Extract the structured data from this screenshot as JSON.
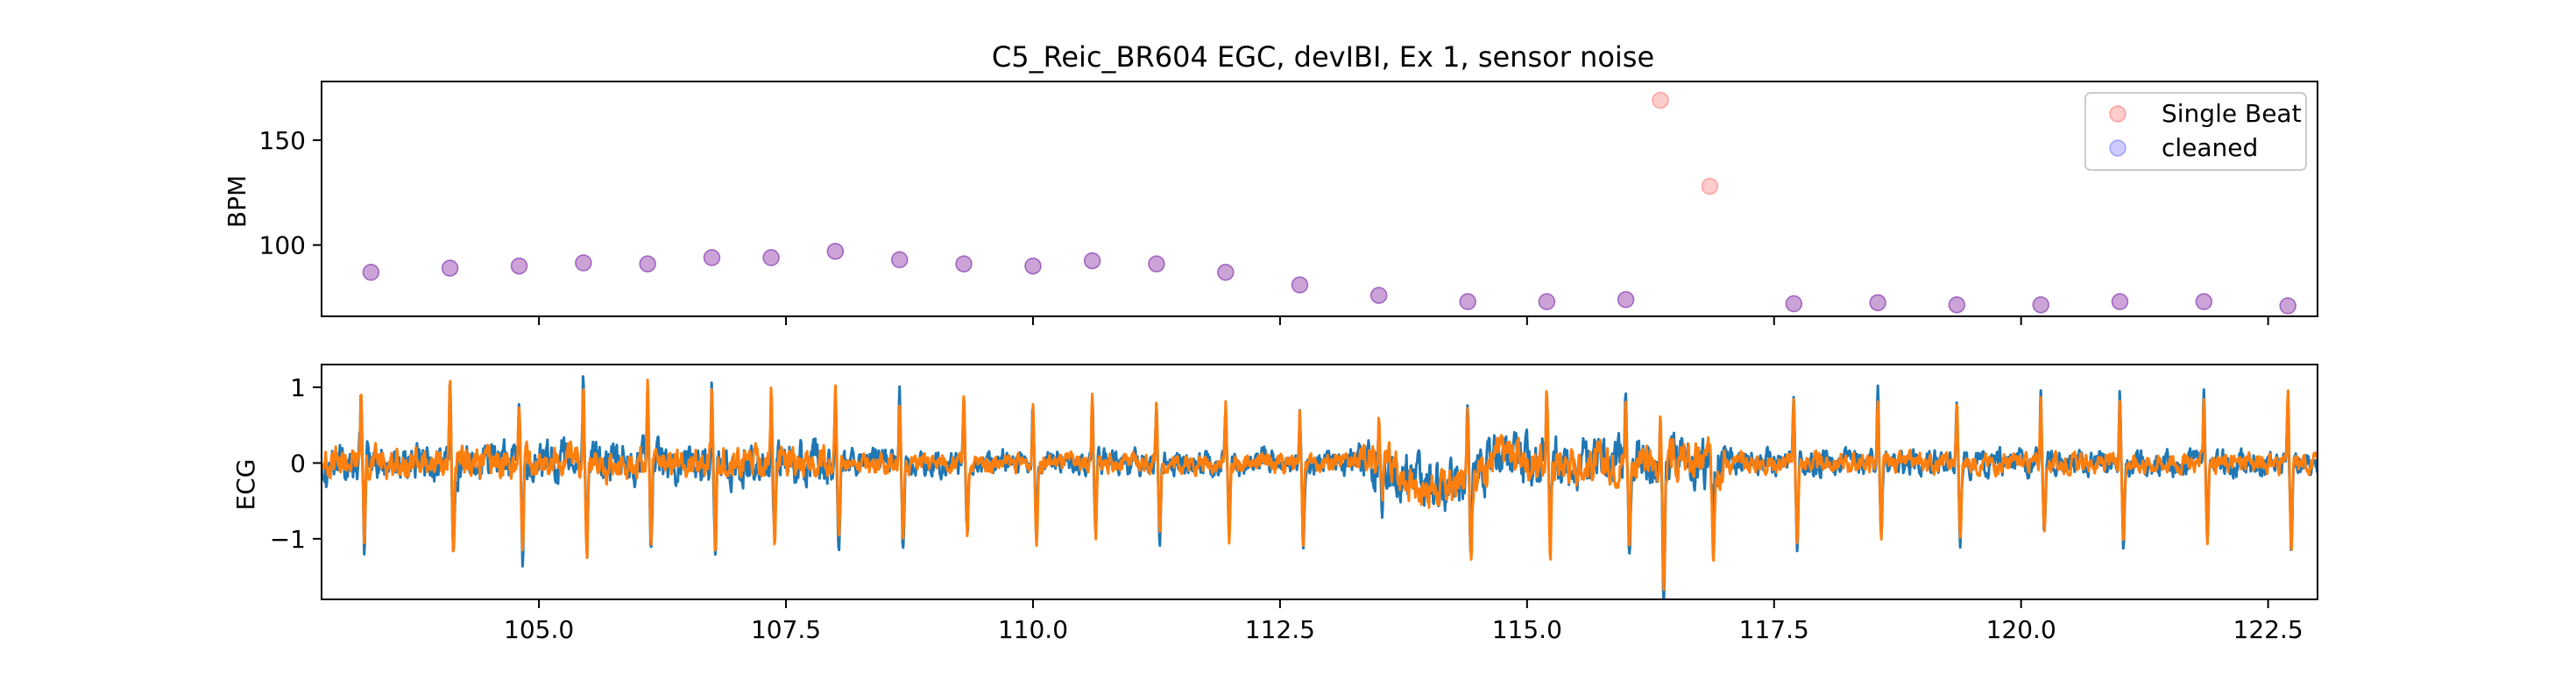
{
  "chart_data": [
    {
      "type": "scatter",
      "panel": "top",
      "title": "C5_Reic_BR604 EGC, devIBI, Ex 1, sensor noise",
      "ylabel": "BPM",
      "xlim": [
        102.8,
        123.0
      ],
      "ylim": [
        66,
        178
      ],
      "yticks": [
        100,
        150
      ],
      "ytick_labels": [
        "100",
        "150"
      ],
      "xticks": [
        105.0,
        107.5,
        110.0,
        112.5,
        115.0,
        117.5,
        120.0,
        122.5
      ],
      "legend_position": "top-right",
      "series": [
        {
          "name": "Single Beat",
          "color": "#ff0000",
          "alpha": 0.2,
          "x": [
            103.3,
            104.1,
            104.8,
            105.45,
            106.1,
            106.75,
            107.35,
            108.0,
            108.65,
            109.3,
            110.0,
            110.6,
            111.25,
            111.95,
            112.7,
            113.5,
            114.4,
            115.2,
            116.0,
            116.35,
            116.85,
            117.7,
            118.55,
            119.35,
            120.2,
            121.0,
            121.85,
            122.7
          ],
          "y": [
            87,
            89,
            90,
            91.5,
            91,
            94,
            94,
            97,
            93,
            91,
            90,
            92.5,
            91,
            87,
            81,
            76,
            73,
            73,
            74,
            169,
            128,
            72,
            72.5,
            71.5,
            71.5,
            73,
            73,
            71
          ]
        },
        {
          "name": "cleaned",
          "color": "#0000ff",
          "alpha": 0.2,
          "x": [
            103.3,
            104.1,
            104.8,
            105.45,
            106.1,
            106.75,
            107.35,
            108.0,
            108.65,
            109.3,
            110.0,
            110.6,
            111.25,
            111.95,
            112.7,
            113.5,
            114.4,
            115.2,
            116.0,
            117.7,
            118.55,
            119.35,
            120.2,
            121.0,
            121.85,
            122.7
          ],
          "y": [
            87,
            89,
            90,
            91.5,
            91,
            94,
            94,
            97,
            93,
            91,
            90,
            92.5,
            91,
            87,
            81,
            76,
            73,
            73,
            74,
            72,
            72.5,
            71.5,
            71.5,
            73,
            73,
            71
          ]
        }
      ]
    },
    {
      "type": "line",
      "panel": "bottom",
      "ylabel": "ECG",
      "xlim": [
        102.8,
        123.0
      ],
      "ylim": [
        -1.8,
        1.3
      ],
      "yticks": [
        -1,
        0,
        1
      ],
      "ytick_labels": [
        "−1",
        "0",
        "1"
      ],
      "xticks": [
        105.0,
        107.5,
        110.0,
        112.5,
        115.0,
        117.5,
        120.0,
        122.5
      ],
      "xtick_labels": [
        "105.0",
        "107.5",
        "110.0",
        "112.5",
        "115.0",
        "117.5",
        "120.0",
        "122.5"
      ],
      "beat_times": [
        103.2,
        104.1,
        104.8,
        105.45,
        106.1,
        106.75,
        107.35,
        108.0,
        108.65,
        109.3,
        110.0,
        110.6,
        111.25,
        111.95,
        112.7,
        113.5,
        114.4,
        115.2,
        116.0,
        116.35,
        116.85,
        117.7,
        118.55,
        119.35,
        120.2,
        121.0,
        121.85,
        122.7
      ],
      "r_peaks": [
        0.9,
        1.1,
        0.8,
        1.2,
        0.95,
        1.05,
        0.95,
        0.95,
        0.85,
        0.8,
        0.75,
        0.9,
        0.85,
        0.75,
        0.7,
        0.65,
        1.0,
        0.85,
        0.9,
        0.45,
        0.3,
        0.9,
        0.85,
        0.85,
        0.95,
        0.95,
        0.9,
        0.95
      ],
      "s_troughs": [
        -1.05,
        -1.2,
        -1.2,
        -1.15,
        -1.2,
        -1.2,
        -1.1,
        -1.1,
        -1.1,
        -0.95,
        -1.05,
        -1.0,
        -1.0,
        -1.0,
        -1.05,
        -0.55,
        -0.85,
        -1.05,
        -1.0,
        -1.7,
        -1.05,
        -1.1,
        -1.05,
        -1.05,
        -1.0,
        -1.0,
        -1.0,
        -1.2
      ],
      "series": [
        {
          "name": "",
          "color": "#1f77b4",
          "noise": 0.12
        },
        {
          "name": "",
          "color": "#ff7f0e",
          "noise": 0.09
        }
      ]
    }
  ]
}
